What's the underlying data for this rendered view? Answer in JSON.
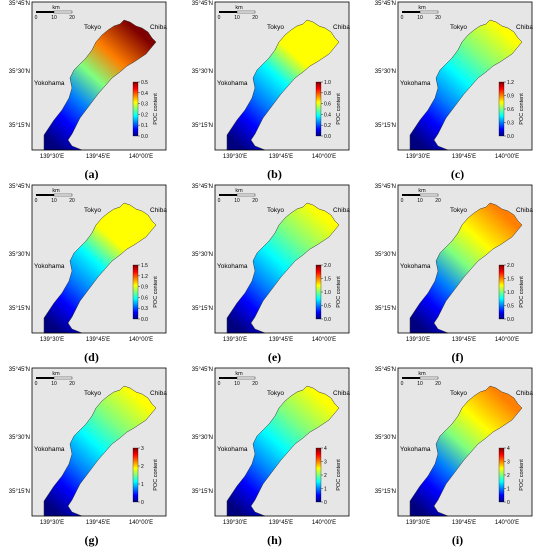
{
  "panels": [
    {
      "label": "(a)",
      "ticks": [
        "0.5",
        "0.4",
        "0.3",
        "0.2",
        "0.1",
        "0.0"
      ],
      "intensity": 0.95
    },
    {
      "label": "(b)",
      "ticks": [
        "1.0",
        "0.8",
        "0.6",
        "0.4",
        "0.2",
        "0.0"
      ],
      "intensity": 0.55
    },
    {
      "label": "(c)",
      "ticks": [
        "1.2",
        "0.9",
        "0.6",
        "0.3",
        "0.0"
      ],
      "intensity": 0.4
    },
    {
      "label": "(d)",
      "ticks": [
        "1.5",
        "1.2",
        "0.9",
        "0.6",
        "0.3",
        "0.0"
      ],
      "intensity": 0.55
    },
    {
      "label": "(e)",
      "ticks": [
        "2.0",
        "1.5",
        "1.0",
        "0.5",
        "0.0"
      ],
      "intensity": 0.45
    },
    {
      "label": "(f)",
      "ticks": [
        "2.0",
        "1.5",
        "1.0",
        "0.5",
        "0.0"
      ],
      "intensity": 0.7
    },
    {
      "label": "(g)",
      "ticks": [
        "3",
        "2",
        "1",
        "0"
      ],
      "intensity": 0.42
    },
    {
      "label": "(h)",
      "ticks": [
        "4",
        "3",
        "2",
        "1",
        "0"
      ],
      "intensity": 0.38
    },
    {
      "label": "(i)",
      "ticks": [
        "4",
        "3",
        "2",
        "1",
        "0"
      ],
      "intensity": 0.65
    }
  ],
  "map_text": {
    "lat_labels": [
      "35°45'N",
      "35°30'N",
      "35°15'N"
    ],
    "lon_labels": [
      "139°30'E",
      "139°45'E",
      "140°00'E"
    ],
    "places": {
      "tokyo": "Tokyo",
      "chiba": "Chiba",
      "yokohama": "Yokohama"
    },
    "scale_unit": "km",
    "scale_ticks": [
      "0",
      "10",
      "20"
    ],
    "colorbar_title": "POC content"
  },
  "colors": {
    "land": "#e6e6e6",
    "frame": "#000000",
    "colormap": [
      "#00007f",
      "#0000ff",
      "#007fff",
      "#00ffff",
      "#7fff7f",
      "#ffff00",
      "#ff7f00",
      "#ff0000",
      "#7f0000"
    ]
  }
}
